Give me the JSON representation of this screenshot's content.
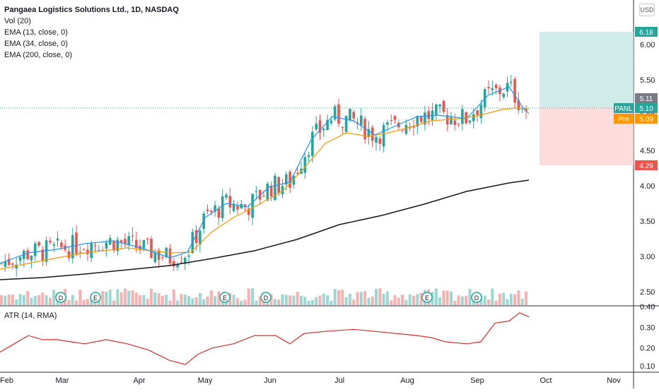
{
  "legend": {
    "title": "Pangaea Logistics Solutions Ltd., 1D, NASDAQ",
    "vol": "Vol (20)",
    "ema13": "EMA (13, close, 0)",
    "ema34": "EMA (34, close, 0)",
    "ema200": "EMA (200, close, 0)",
    "atr": "ATR (14, RMA)"
  },
  "currency_button": "USD",
  "colors": {
    "up": "#26a69a",
    "down": "#ef5350",
    "ema13": "#2196f3",
    "ema34": "#ff9800",
    "ema200": "#131722",
    "atr": "#d32f2f",
    "profit_zone": "#bfe6e0",
    "loss_zone": "#fbd0d0"
  },
  "chart_data": {
    "type": "candlestick",
    "x_axis_labels": [
      "Feb",
      "Mar",
      "Apr",
      "May",
      "Jun",
      "Jul",
      "Aug",
      "Sep",
      "Oct",
      "Nov"
    ],
    "price_axis": {
      "ticks": [
        "6.00",
        "5.50",
        "5.00",
        "4.50",
        "4.00",
        "3.50",
        "3.00",
        "2.50"
      ],
      "range": [
        2.4,
        6.5
      ]
    },
    "atr_axis": {
      "ticks": [
        "0.40",
        "0.30",
        "0.20",
        "0.10"
      ],
      "range": [
        0.1,
        0.4
      ]
    },
    "price_labels": [
      {
        "label": "",
        "value": "6.18",
        "color": "#26a69a"
      },
      {
        "label": "",
        "value": "5.11",
        "color": "#787b86"
      },
      {
        "label": "PANL",
        "value": "5.10",
        "color": "#26a69a"
      },
      {
        "label": "Pre",
        "value": "5.09",
        "color": "#ff9800"
      },
      {
        "label": "",
        "value": "4.29",
        "color": "#ef5350"
      }
    ],
    "position": {
      "entry": 5.11,
      "target": 6.18,
      "stop": 4.29
    },
    "current_price": 5.1,
    "event_markers": [
      {
        "letter": "D",
        "type": "dividend"
      },
      {
        "letter": "E",
        "type": "earnings"
      },
      {
        "letter": "E",
        "type": "earnings"
      },
      {
        "letter": "D",
        "type": "dividend"
      },
      {
        "letter": "E",
        "type": "earnings"
      },
      {
        "letter": "D",
        "type": "dividend"
      }
    ],
    "ema200_points": [
      [
        0,
        2.67
      ],
      [
        60,
        2.7
      ],
      [
        120,
        2.75
      ],
      [
        180,
        2.81
      ],
      [
        240,
        2.87
      ],
      [
        300,
        2.97
      ],
      [
        360,
        3.08
      ],
      [
        420,
        3.24
      ],
      [
        480,
        3.45
      ],
      [
        540,
        3.58
      ],
      [
        600,
        3.74
      ],
      [
        660,
        3.92
      ],
      [
        720,
        4.04
      ],
      [
        748,
        4.08
      ]
    ],
    "ema34_points": [
      [
        0,
        2.82
      ],
      [
        60,
        2.94
      ],
      [
        120,
        3.05
      ],
      [
        180,
        3.12
      ],
      [
        240,
        3.05
      ],
      [
        270,
        3.06
      ],
      [
        300,
        3.35
      ],
      [
        330,
        3.55
      ],
      [
        360,
        3.7
      ],
      [
        400,
        3.93
      ],
      [
        430,
        4.25
      ],
      [
        460,
        4.6
      ],
      [
        490,
        4.75
      ],
      [
        520,
        4.7
      ],
      [
        550,
        4.75
      ],
      [
        580,
        4.83
      ],
      [
        610,
        4.92
      ],
      [
        650,
        4.95
      ],
      [
        680,
        5.0
      ],
      [
        710,
        5.08
      ],
      [
        730,
        5.1
      ],
      [
        748,
        5.09
      ]
    ],
    "ema13_points": [
      [
        0,
        2.9
      ],
      [
        40,
        3.05
      ],
      [
        80,
        3.1
      ],
      [
        120,
        3.18
      ],
      [
        160,
        3.22
      ],
      [
        200,
        3.12
      ],
      [
        240,
        2.98
      ],
      [
        265,
        3.06
      ],
      [
        290,
        3.55
      ],
      [
        320,
        3.75
      ],
      [
        350,
        3.7
      ],
      [
        380,
        3.98
      ],
      [
        410,
        4.05
      ],
      [
        440,
        4.65
      ],
      [
        470,
        4.98
      ],
      [
        500,
        4.92
      ],
      [
        530,
        4.72
      ],
      [
        560,
        4.85
      ],
      [
        590,
        4.98
      ],
      [
        620,
        5.0
      ],
      [
        660,
        4.95
      ],
      [
        690,
        5.28
      ],
      [
        720,
        5.4
      ],
      [
        740,
        5.1
      ],
      [
        748,
        5.02
      ]
    ],
    "atr_points": [
      [
        0,
        0.18
      ],
      [
        20,
        0.22
      ],
      [
        40,
        0.26
      ],
      [
        60,
        0.24
      ],
      [
        80,
        0.24
      ],
      [
        100,
        0.23
      ],
      [
        120,
        0.22
      ],
      [
        150,
        0.24
      ],
      [
        180,
        0.22
      ],
      [
        210,
        0.19
      ],
      [
        240,
        0.14
      ],
      [
        262,
        0.12
      ],
      [
        280,
        0.17
      ],
      [
        300,
        0.2
      ],
      [
        330,
        0.22
      ],
      [
        360,
        0.26
      ],
      [
        390,
        0.26
      ],
      [
        410,
        0.22
      ],
      [
        430,
        0.27
      ],
      [
        460,
        0.28
      ],
      [
        500,
        0.29
      ],
      [
        530,
        0.28
      ],
      [
        560,
        0.27
      ],
      [
        590,
        0.26
      ],
      [
        610,
        0.25
      ],
      [
        630,
        0.23
      ],
      [
        660,
        0.22
      ],
      [
        680,
        0.23
      ],
      [
        700,
        0.32
      ],
      [
        720,
        0.33
      ],
      [
        735,
        0.37
      ],
      [
        748,
        0.35
      ]
    ]
  }
}
